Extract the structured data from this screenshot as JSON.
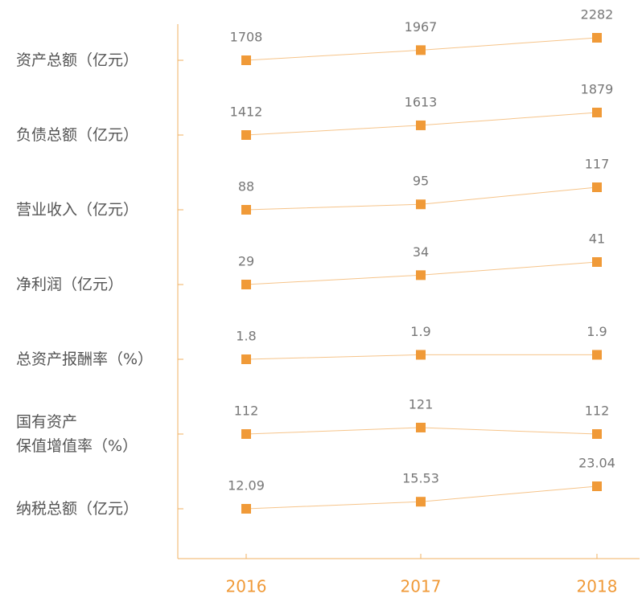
{
  "chart_data": {
    "type": "line",
    "categories": [
      "2016",
      "2017",
      "2018"
    ],
    "color": "#f09a38",
    "line_color": "#f6c48a",
    "series": [
      {
        "name": "资产总额（亿元）",
        "values": [
          1708,
          1967,
          2282
        ]
      },
      {
        "name": "负债总额（亿元）",
        "values": [
          1412,
          1613,
          1879
        ]
      },
      {
        "name": "营业收入（亿元）",
        "values": [
          88,
          95,
          117
        ]
      },
      {
        "name": "净利润（亿元）",
        "values": [
          29,
          34,
          41
        ]
      },
      {
        "name": "总资产报酬率（%）",
        "values": [
          1.8,
          1.9,
          1.9
        ]
      },
      {
        "name": "国有资产\n保值增值率（%）",
        "values": [
          112,
          121,
          112
        ]
      },
      {
        "name": "纳税总额（亿元）",
        "values": [
          12.09,
          15.53,
          23.04
        ]
      }
    ]
  }
}
